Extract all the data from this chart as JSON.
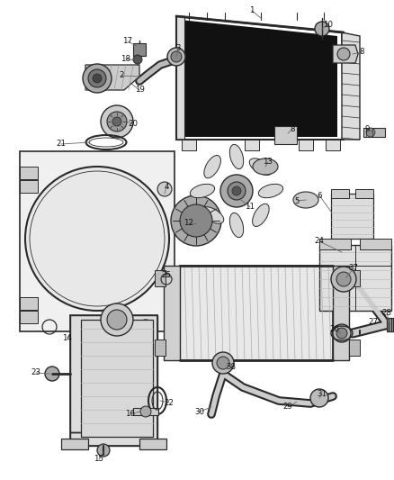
{
  "bg_color": "#ffffff",
  "lc": "#2a2a2a",
  "gray1": "#cccccc",
  "gray2": "#999999",
  "gray3": "#eeeeee",
  "dark": "#111111",
  "figsize": [
    4.38,
    5.33
  ],
  "dpi": 100
}
